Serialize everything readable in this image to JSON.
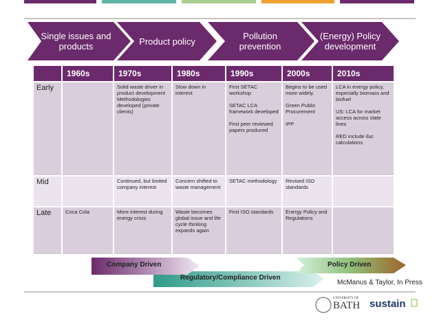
{
  "phases": [
    "Single issues and products",
    "Product policy",
    "Pollution prevention",
    "(Energy) Policy development"
  ],
  "table": {
    "header": [
      "",
      "1960s",
      "1970s",
      "1980s",
      "1990s",
      "2000s",
      "2010s"
    ],
    "rows": [
      [
        "Early",
        "",
        [
          "Solid waste driver in product development Methodologies developed (private clients)"
        ],
        [
          "Slow down in interest"
        ],
        [
          "First SETAC workshop",
          "SETAC LCA framework developed",
          "First peer reviewed papers produced"
        ],
        [
          "Begins to be used more widely.",
          "Green Public Procurement",
          "IPP"
        ],
        [
          "LCA in energy policy, especially biomass and biofuel",
          "US: LCA for market access across state lines",
          "RED include iluc calculations"
        ]
      ],
      [
        "Mid",
        "",
        [
          "Continued, but limited company interest"
        ],
        [
          "Concern shifted to waste management"
        ],
        [
          "SETAC methodology"
        ],
        [
          "Revised ISO standards"
        ],
        ""
      ],
      [
        "Late",
        [
          "Coca Cola"
        ],
        [
          "More interest during energy crisis"
        ],
        [
          "Waste becomes global issue and life cycle thinking expands again"
        ],
        [
          "First ISO standards"
        ],
        [
          "Energy Policy and Regulations"
        ],
        ""
      ]
    ]
  },
  "drivers": [
    "Company Driven",
    "Regulatory/Compliance Driven",
    "Policy Driven"
  ],
  "citation": "McManus & Taylor, In Press",
  "logos": {
    "university_of": "UNIVERSITY OF",
    "bath": "BATH",
    "sustain": "sustain"
  }
}
